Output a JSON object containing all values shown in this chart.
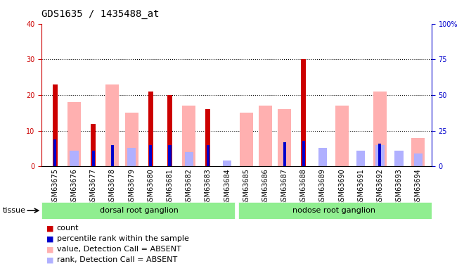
{
  "title": "GDS1635 / 1435488_at",
  "samples": [
    "GSM63675",
    "GSM63676",
    "GSM63677",
    "GSM63678",
    "GSM63679",
    "GSM63680",
    "GSM63681",
    "GSM63682",
    "GSM63683",
    "GSM63684",
    "GSM63685",
    "GSM63686",
    "GSM63687",
    "GSM63688",
    "GSM63689",
    "GSM63690",
    "GSM63691",
    "GSM63692",
    "GSM63693",
    "GSM63694"
  ],
  "count_values": [
    23,
    0,
    12,
    0,
    0,
    21,
    20,
    0,
    16,
    0,
    0,
    0,
    0,
    30,
    0,
    0,
    0,
    0,
    0,
    0
  ],
  "rank_values": [
    19,
    0,
    11,
    15,
    0,
    15,
    15,
    0,
    15,
    0,
    0,
    0,
    17,
    18,
    0,
    0,
    0,
    16,
    0,
    0
  ],
  "absent_value": [
    0,
    18,
    0,
    23,
    15,
    0,
    0,
    17,
    0,
    0,
    15,
    17,
    16,
    0,
    0,
    17,
    0,
    21,
    0,
    8
  ],
  "absent_rank": [
    0,
    11,
    0,
    0,
    13,
    0,
    0,
    10,
    0,
    4,
    0,
    0,
    0,
    0,
    13,
    0,
    11,
    15,
    11,
    9
  ],
  "dorsal_count": 10,
  "nodose_count": 10,
  "group1_label": "dorsal root ganglion",
  "group2_label": "nodose root ganglion",
  "tissue_label": "tissue",
  "ylim_left": [
    0,
    40
  ],
  "ylim_right": [
    0,
    100
  ],
  "yticks_left": [
    0,
    10,
    20,
    30,
    40
  ],
  "yticks_right": [
    0,
    25,
    50,
    75,
    100
  ],
  "left_axis_color": "#cc0000",
  "right_axis_color": "#0000cc",
  "bar_color_count": "#cc0000",
  "bar_color_rank": "#0000cc",
  "bar_color_absent_value": "#ffb0b0",
  "bar_color_absent_rank": "#b0b0ff",
  "bg_color": "#e0e0e0",
  "group_bg": "#90ee90",
  "title_fontsize": 10,
  "tick_fontsize": 7,
  "legend_fontsize": 8
}
